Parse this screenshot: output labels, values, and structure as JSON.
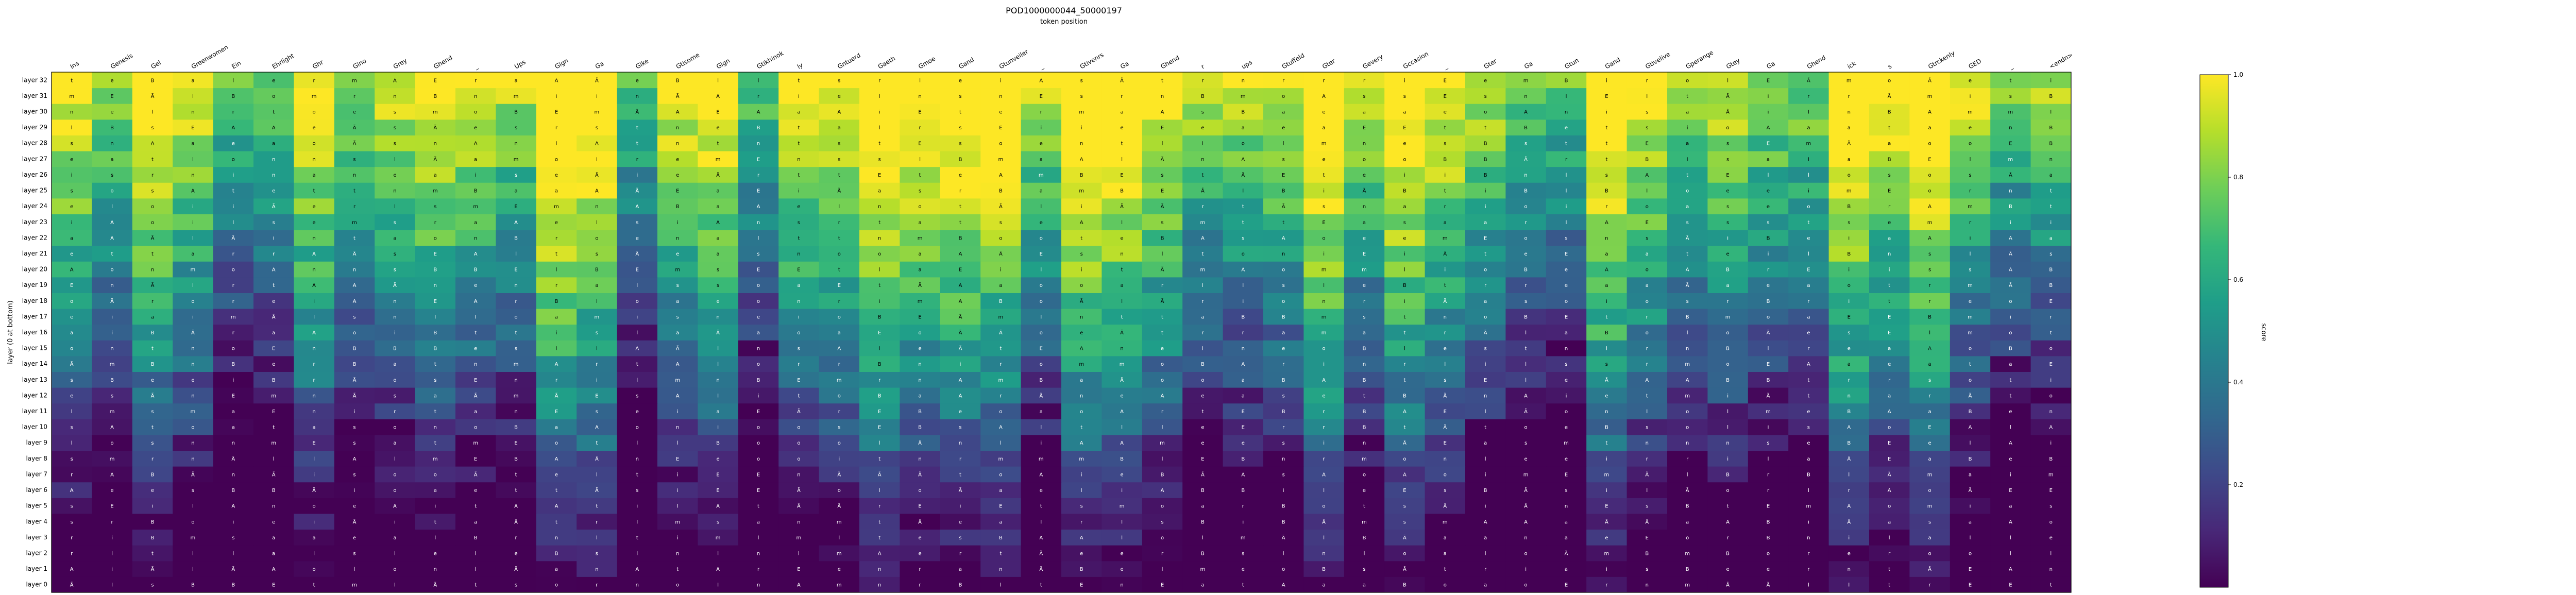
{
  "chart_data": {
    "type": "heatmap",
    "title": "POD1000000044_50000197",
    "xlabel": "token position",
    "ylabel": "layer (0 at bottom)",
    "colorbar_label": "score",
    "colorbar_ticks": [
      "0.2",
      "0.4",
      "0.6",
      "0.8",
      "1.0"
    ],
    "colorbar_tick_values": [
      0.2,
      0.4,
      0.6,
      0.8,
      1.0
    ],
    "value_range": [
      0,
      1
    ],
    "colormap": "viridis",
    "x_tokens": [
      "Ins",
      "Genesis",
      "Gel",
      "Greenwomen",
      "Ein",
      "Ehrlight",
      "Ghr",
      "Gino",
      "Grey",
      "Ghend",
      "_",
      "Ups",
      "Gign",
      "Ga",
      "Gike",
      "Gtisome",
      "Gign",
      "Gtikhinok",
      "ly",
      "Gntuerd",
      "Gaeth",
      "Gmoe",
      "Gand",
      "Gtunveiler",
      "_",
      "Gtivenrs",
      "Ga",
      "Ghend",
      "r",
      "ups",
      "Gtuffeld",
      "Gter",
      "Gevery",
      "Gccasion",
      "_",
      "Gter",
      "Ga",
      "Gtun",
      "Gand",
      "Gtivelive",
      "Gperange",
      "Gtey",
      "Ga",
      "Ghend",
      "ick",
      "s",
      "Gtrckenly",
      "GED",
      "_",
      "<endn>"
    ],
    "y_layers": [
      "layer 0",
      "layer 1",
      "layer 2",
      "layer 3",
      "layer 4",
      "layer 5",
      "layer 6",
      "layer 7",
      "layer 8",
      "layer 9",
      "layer 10",
      "layer 11",
      "layer 12",
      "layer 13",
      "layer 14",
      "layer 15",
      "layer 16",
      "layer 17",
      "layer 18",
      "layer 19",
      "layer 20",
      "layer 21",
      "layer 22",
      "layer 23",
      "layer 24",
      "layer 25",
      "layer 26",
      "layer 27",
      "layer 28",
      "layer 29",
      "layer 30",
      "layer 31",
      "layer 32"
    ],
    "n_layers": 33,
    "n_tokens": 50,
    "grid": false
  },
  "colors": {
    "viridis_stops": [
      "#440154",
      "#482878",
      "#3e4989",
      "#31688e",
      "#26828e",
      "#1f9e89",
      "#35b779",
      "#6ece58",
      "#b5de2b",
      "#fde725"
    ],
    "axis": "#000000",
    "background": "#ffffff"
  }
}
